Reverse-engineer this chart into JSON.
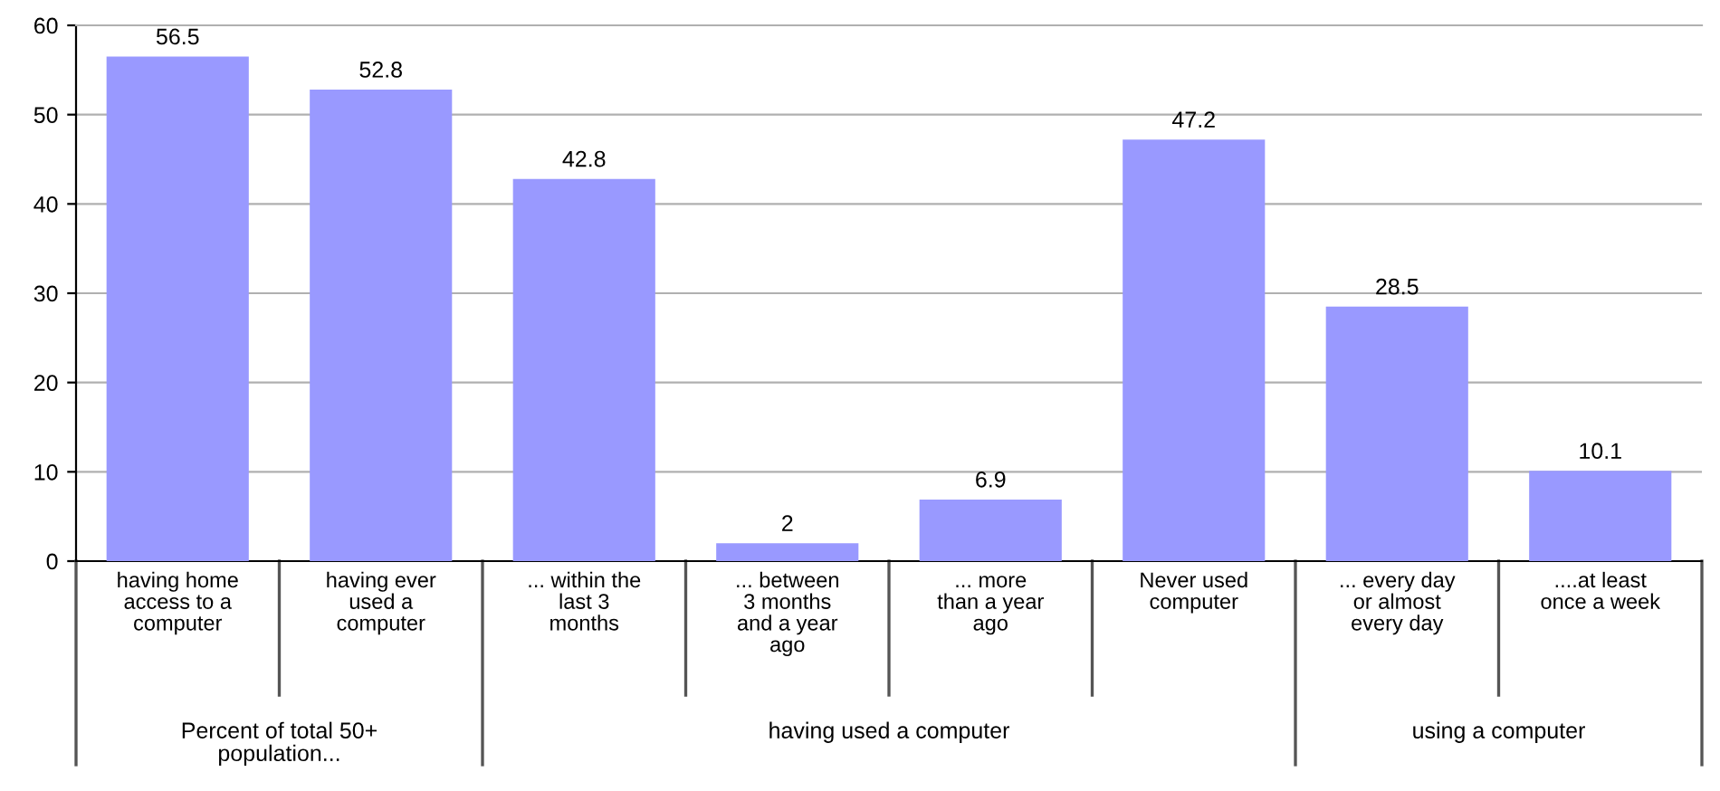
{
  "chart_data": {
    "type": "bar",
    "categories": [
      "having home\naccess to a\ncomputer",
      "having ever\nused a\ncomputer",
      "... within the\nlast 3\nmonths",
      "... between\n3 months\nand a year\nago",
      "... more\nthan a year\nago",
      "Never used\ncomputer",
      "... every day\nor almost\nevery day",
      "....at least\nonce a week"
    ],
    "values": [
      56.5,
      52.8,
      42.8,
      2,
      6.9,
      47.2,
      28.5,
      10.1
    ],
    "color": "#9999ff",
    "data_labels": true,
    "ylim": [
      0,
      60
    ],
    "yticks": [
      0,
      10,
      20,
      30,
      40,
      50,
      60
    ],
    "grid": "y",
    "annotations": [
      "Percent of total 50+\npopulation...",
      "having used a computer",
      "using a computer"
    ]
  }
}
